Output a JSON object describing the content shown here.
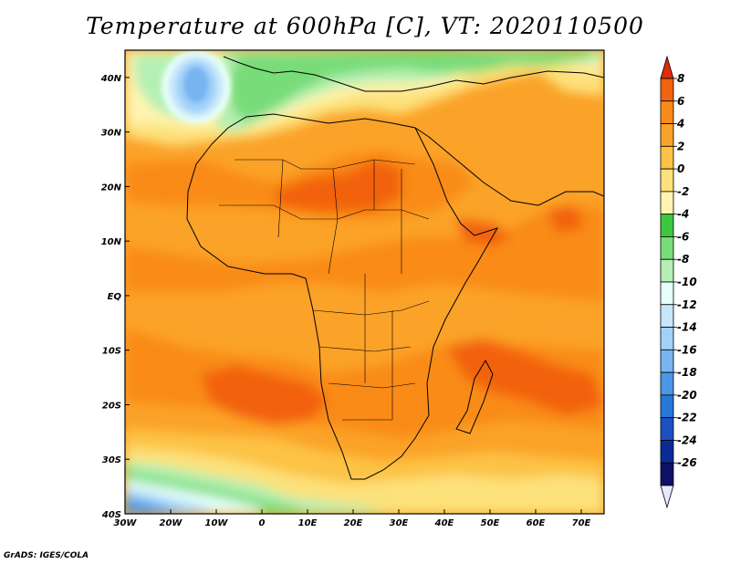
{
  "title": "Temperature at 600hPa [C], VT: 2020110500",
  "credit": "GrADS: IGES/COLA",
  "map": {
    "lon_range": [
      -30,
      75
    ],
    "lat_range": [
      -40,
      45
    ],
    "lon_ticks": [
      {
        "value": -30,
        "label": "30W"
      },
      {
        "value": -20,
        "label": "20W"
      },
      {
        "value": -10,
        "label": "10W"
      },
      {
        "value": 0,
        "label": "0"
      },
      {
        "value": 10,
        "label": "10E"
      },
      {
        "value": 20,
        "label": "20E"
      },
      {
        "value": 30,
        "label": "30E"
      },
      {
        "value": 40,
        "label": "40E"
      },
      {
        "value": 50,
        "label": "50E"
      },
      {
        "value": 60,
        "label": "60E"
      },
      {
        "value": 70,
        "label": "70E"
      }
    ],
    "lat_ticks": [
      {
        "value": 40,
        "label": "40N"
      },
      {
        "value": 30,
        "label": "30N"
      },
      {
        "value": 20,
        "label": "20N"
      },
      {
        "value": 10,
        "label": "10N"
      },
      {
        "value": 0,
        "label": "EQ"
      },
      {
        "value": -10,
        "label": "10S"
      },
      {
        "value": -20,
        "label": "20S"
      },
      {
        "value": -30,
        "label": "30S"
      },
      {
        "value": -40,
        "label": "40S"
      }
    ]
  },
  "colorbar": {
    "levels": [
      8,
      6,
      4,
      2,
      0,
      -2,
      -4,
      -6,
      -8,
      -10,
      -12,
      -14,
      -16,
      -18,
      -20,
      -22,
      -24,
      -26
    ],
    "colors": [
      "#e02a0a",
      "#f2620f",
      "#f98b18",
      "#fba228",
      "#fcc345",
      "#fde17a",
      "#fff4b0",
      "#3cc83c",
      "#78dc78",
      "#b4f0b4",
      "#e6fffa",
      "#c8e6fa",
      "#a0d2fa",
      "#78b4f0",
      "#4b96e6",
      "#2878d7",
      "#1c50c0",
      "#0a2a96",
      "#101068",
      "#e8e8ff"
    ]
  }
}
